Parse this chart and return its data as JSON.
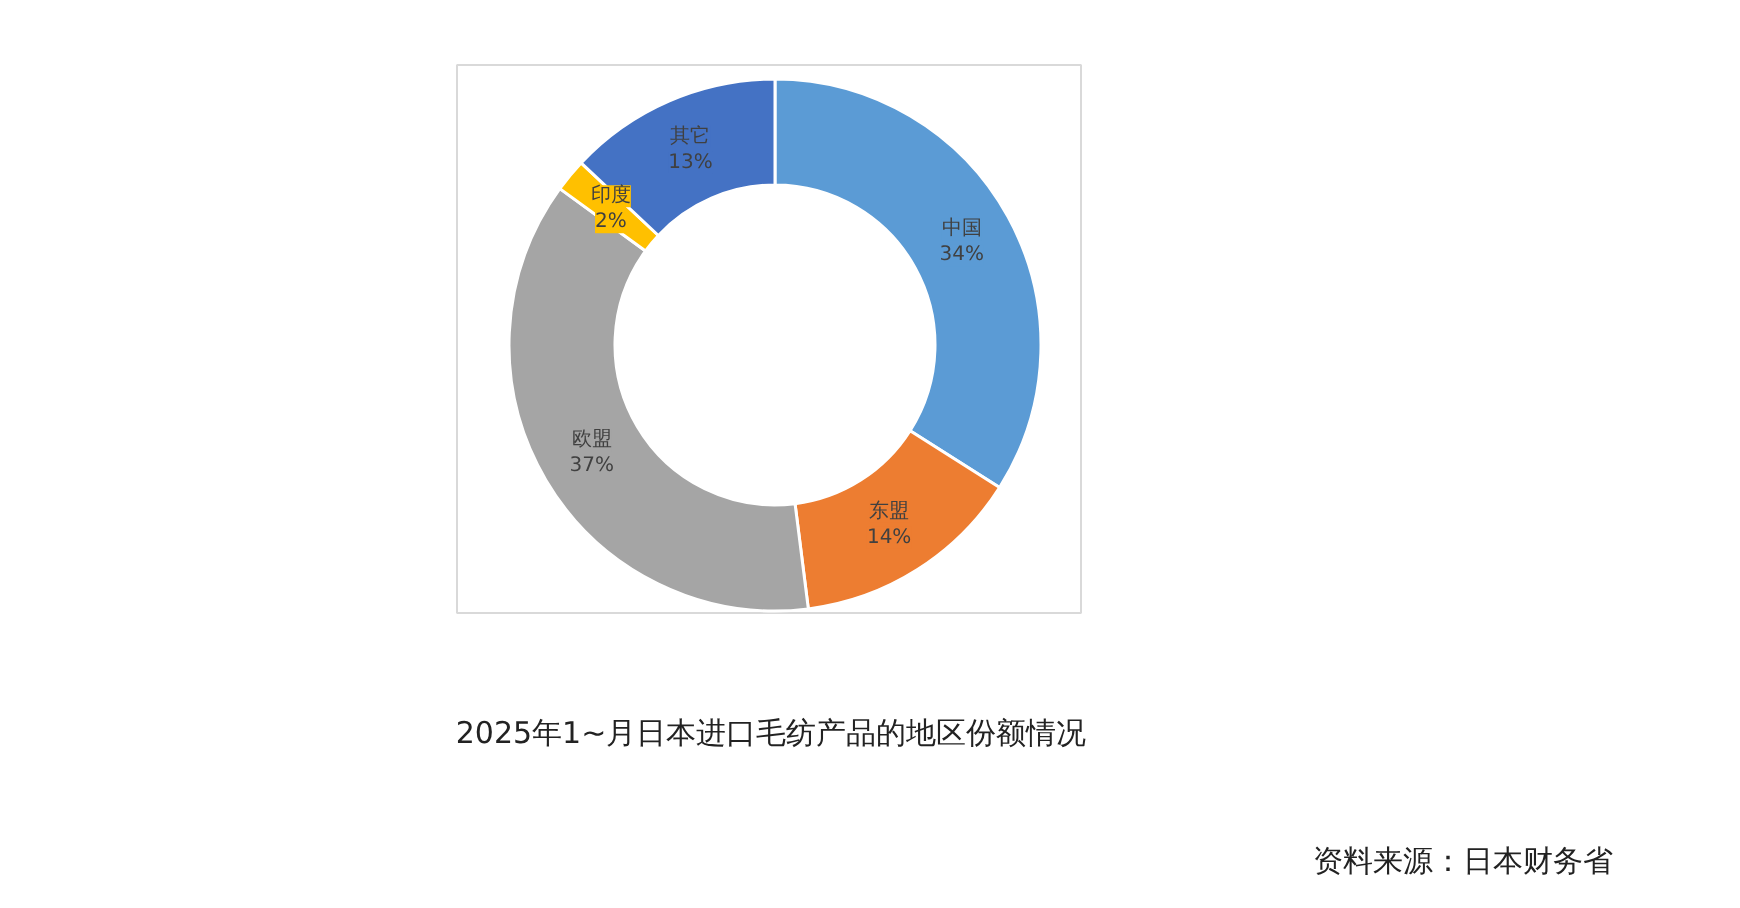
{
  "chart_data": {
    "type": "donut",
    "title": "2025年1~月日本进口毛纺产品的地区份额情况",
    "categories": [
      "中国",
      "东盟",
      "欧盟",
      "印度",
      "其它"
    ],
    "values": [
      34,
      14,
      37,
      2,
      13
    ],
    "value_labels": [
      "34%",
      "14%",
      "37%",
      "2%",
      "13%"
    ],
    "colors": [
      "#5b9bd5",
      "#ed7d31",
      "#a5a5a5",
      "#ffc000",
      "#4472c4"
    ],
    "annotations": [
      "资料来源：日本财务省"
    ]
  }
}
